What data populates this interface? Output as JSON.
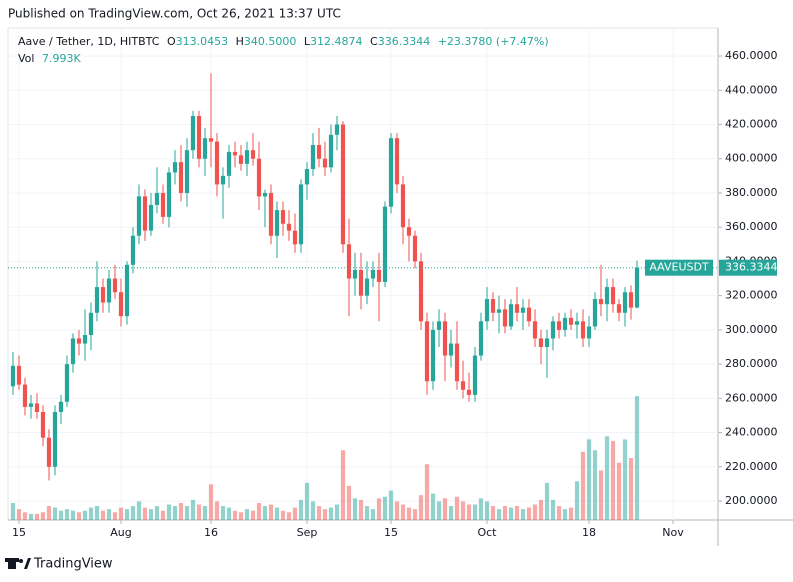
{
  "header": {
    "published": "Published on TradingView.com, Oct 26, 2021 13:37 UTC"
  },
  "legend": {
    "symbol": "Aave / Tether, 1D, HITBTC",
    "o_label": "O",
    "o": "313.0453",
    "h_label": "H",
    "h": "340.5000",
    "l_label": "L",
    "l": "312.4874",
    "c_label": "C",
    "c": "336.3344",
    "change": "+23.3780 (+7.47%)",
    "vol_label": "Vol",
    "vol": "7.993K"
  },
  "chart_data": {
    "type": "candlestick",
    "up_color": "#26a69a",
    "down_color": "#ef5350",
    "x": [
      0,
      1,
      2,
      3,
      4,
      5,
      6,
      7,
      8,
      9,
      10,
      11,
      12,
      13,
      14,
      15,
      16,
      17,
      18,
      19,
      20,
      21,
      22,
      23,
      24,
      25,
      26,
      27,
      28,
      29,
      30,
      31,
      32,
      33,
      34,
      35,
      36,
      37,
      38,
      39,
      40,
      41,
      42,
      43,
      44,
      45,
      46,
      47,
      48,
      49,
      50,
      51,
      52,
      53,
      54,
      55,
      56,
      57,
      58,
      59,
      60,
      61,
      62,
      63,
      64,
      65,
      66,
      67,
      68,
      69,
      70,
      71,
      72,
      73,
      74,
      75,
      76,
      77,
      78,
      79,
      80,
      81,
      82,
      83,
      84,
      85,
      86,
      87,
      88,
      89,
      90,
      91,
      92,
      93,
      94,
      95,
      96,
      97,
      98,
      99,
      100,
      101,
      102,
      103,
      104
    ],
    "open": [
      267,
      279,
      268,
      255,
      257,
      252,
      237,
      220,
      252,
      258,
      280,
      295,
      292,
      297,
      310,
      325,
      316,
      330,
      322,
      308,
      338,
      355,
      378,
      358,
      373,
      380,
      366,
      392,
      398,
      380,
      405,
      425,
      400,
      412,
      410,
      385,
      390,
      404,
      402,
      397,
      405,
      400,
      378,
      380,
      355,
      370,
      362,
      358,
      350,
      385,
      394,
      408,
      400,
      395,
      414,
      420,
      350,
      330,
      335,
      320,
      330,
      335,
      328,
      372,
      412,
      385,
      360,
      355,
      340,
      305,
      270,
      300,
      305,
      285,
      292,
      270,
      265,
      262,
      285,
      305,
      318,
      310,
      312,
      302,
      315,
      310,
      313,
      305,
      295,
      290,
      295,
      305,
      300,
      307,
      303,
      305,
      295,
      302,
      318,
      315,
      325,
      315,
      310,
      322,
      313.0453
    ],
    "high": [
      287,
      285,
      272,
      262,
      263,
      256,
      242,
      256,
      262,
      285,
      298,
      300,
      312,
      316,
      340,
      330,
      335,
      338,
      330,
      340,
      360,
      385,
      382,
      380,
      395,
      385,
      395,
      405,
      408,
      412,
      428,
      428,
      418,
      450,
      415,
      395,
      408,
      410,
      408,
      410,
      415,
      410,
      382,
      385,
      375,
      375,
      370,
      368,
      388,
      398,
      415,
      418,
      410,
      420,
      425,
      422,
      365,
      345,
      345,
      340,
      340,
      345,
      375,
      415,
      415,
      390,
      365,
      358,
      345,
      310,
      305,
      312,
      310,
      300,
      305,
      282,
      275,
      290,
      310,
      325,
      322,
      320,
      318,
      318,
      325,
      318,
      318,
      312,
      300,
      300,
      308,
      310,
      310,
      312,
      310,
      312,
      308,
      322,
      338,
      330,
      330,
      318,
      325,
      326,
      340.5
    ],
    "low": [
      262,
      265,
      250,
      248,
      248,
      232,
      212,
      215,
      245,
      255,
      275,
      285,
      282,
      288,
      305,
      310,
      310,
      318,
      302,
      303,
      333,
      350,
      352,
      355,
      368,
      362,
      360,
      385,
      375,
      372,
      400,
      395,
      390,
      395,
      378,
      365,
      383,
      395,
      393,
      390,
      396,
      370,
      360,
      350,
      342,
      355,
      352,
      345,
      345,
      376,
      390,
      395,
      390,
      392,
      405,
      345,
      308,
      320,
      312,
      315,
      325,
      305,
      325,
      368,
      380,
      350,
      340,
      336,
      300,
      262,
      265,
      290,
      270,
      278,
      265,
      260,
      258,
      258,
      282,
      300,
      305,
      298,
      298,
      300,
      305,
      300,
      302,
      290,
      280,
      272,
      288,
      295,
      296,
      300,
      295,
      290,
      290,
      300,
      308,
      305,
      310,
      305,
      302,
      306,
      312.4874
    ],
    "close": [
      279,
      268,
      255,
      257,
      252,
      237,
      220,
      252,
      258,
      280,
      295,
      292,
      297,
      310,
      325,
      316,
      330,
      322,
      308,
      338,
      355,
      378,
      358,
      373,
      380,
      366,
      392,
      398,
      380,
      405,
      425,
      400,
      412,
      410,
      385,
      390,
      404,
      402,
      397,
      405,
      400,
      378,
      380,
      355,
      370,
      362,
      358,
      350,
      385,
      394,
      408,
      400,
      395,
      414,
      420,
      350,
      330,
      335,
      320,
      330,
      335,
      328,
      372,
      412,
      385,
      360,
      355,
      340,
      305,
      270,
      300,
      305,
      285,
      292,
      270,
      265,
      262,
      285,
      305,
      318,
      310,
      312,
      302,
      315,
      310,
      313,
      305,
      295,
      290,
      295,
      305,
      300,
      307,
      303,
      305,
      295,
      302,
      318,
      315,
      325,
      315,
      310,
      322,
      313,
      336.3344
    ],
    "volume": [
      1100,
      700,
      500,
      400,
      400,
      500,
      900,
      800,
      600,
      700,
      600,
      500,
      600,
      800,
      900,
      600,
      700,
      500,
      800,
      700,
      900,
      1200,
      800,
      700,
      900,
      600,
      1000,
      900,
      1100,
      900,
      1300,
      1000,
      900,
      2300,
      1200,
      900,
      800,
      600,
      500,
      700,
      600,
      1100,
      900,
      1000,
      800,
      600,
      500,
      800,
      1300,
      2400,
      1200,
      900,
      700,
      800,
      1000,
      4500,
      2200,
      1400,
      1300,
      900,
      700,
      1400,
      1500,
      1900,
      1200,
      1000,
      800,
      700,
      1600,
      3600,
      1700,
      1200,
      1400,
      900,
      1500,
      1200,
      1000,
      1000,
      1400,
      1200,
      900,
      700,
      900,
      800,
      900,
      700,
      800,
      1000,
      1300,
      2400,
      1300,
      900,
      700,
      800,
      2500,
      4400,
      5200,
      4500,
      3200,
      5400,
      5100,
      3700,
      5200,
      4000,
      7993
    ],
    "volume_lim": [
      0,
      8000
    ],
    "xlim": [
      -0.83,
      117.5
    ],
    "ylim": [
      188.9,
      476.4
    ],
    "yticks": [
      {
        "value": 200,
        "label": "200.0000"
      },
      {
        "value": 220,
        "label": "220.0000"
      },
      {
        "value": 240,
        "label": "240.0000"
      },
      {
        "value": 260,
        "label": "260.0000"
      },
      {
        "value": 280,
        "label": "280.0000"
      },
      {
        "value": 300,
        "label": "300.0000"
      },
      {
        "value": 320,
        "label": "320.0000"
      },
      {
        "value": 340,
        "label": "340.0000"
      },
      {
        "value": 360,
        "label": "360.0000"
      },
      {
        "value": 380,
        "label": "380.0000"
      },
      {
        "value": 400,
        "label": "400.0000"
      },
      {
        "value": 420,
        "label": "420.0000"
      },
      {
        "value": 440,
        "label": "440.0000"
      },
      {
        "value": 460,
        "label": "460.0000"
      }
    ],
    "xticks": [
      {
        "value": 1,
        "label": "15"
      },
      {
        "value": 18,
        "label": "Aug"
      },
      {
        "value": 33,
        "label": "16"
      },
      {
        "value": 49,
        "label": "Sep"
      },
      {
        "value": 63,
        "label": "15"
      },
      {
        "value": 79,
        "label": "Oct"
      },
      {
        "value": 96,
        "label": "18"
      },
      {
        "value": 110,
        "label": "Nov"
      }
    ],
    "grid": true,
    "symbol_tag": "AAVEUSDT",
    "last_price": 336.3344
  },
  "footer": {
    "brand": "TradingView"
  }
}
